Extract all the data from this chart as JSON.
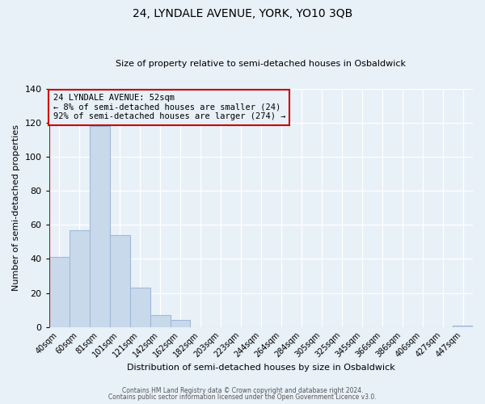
{
  "title": "24, LYNDALE AVENUE, YORK, YO10 3QB",
  "subtitle": "Size of property relative to semi-detached houses in Osbaldwick",
  "xlabel": "Distribution of semi-detached houses by size in Osbaldwick",
  "ylabel": "Number of semi-detached properties",
  "bin_labels": [
    "40sqm",
    "60sqm",
    "81sqm",
    "101sqm",
    "121sqm",
    "142sqm",
    "162sqm",
    "182sqm",
    "203sqm",
    "223sqm",
    "244sqm",
    "264sqm",
    "284sqm",
    "305sqm",
    "325sqm",
    "345sqm",
    "366sqm",
    "386sqm",
    "406sqm",
    "427sqm",
    "447sqm"
  ],
  "bar_heights": [
    41,
    57,
    118,
    54,
    23,
    7,
    4,
    0,
    0,
    0,
    0,
    0,
    0,
    0,
    0,
    0,
    0,
    0,
    0,
    0,
    1
  ],
  "bar_color": "#c9d9ec",
  "bar_edge_color": "#a0b8d8",
  "highlight_color": "#cc0000",
  "annotation_text": "24 LYNDALE AVENUE: 52sqm\n← 8% of semi-detached houses are smaller (24)\n92% of semi-detached houses are larger (274) →",
  "annotation_box_color": "#cc0000",
  "ylim": [
    0,
    140
  ],
  "yticks": [
    0,
    20,
    40,
    60,
    80,
    100,
    120,
    140
  ],
  "background_color": "#e8f0f8",
  "grid_color": "#ffffff",
  "title_fontsize": 10,
  "subtitle_fontsize": 8,
  "footer_line1": "Contains HM Land Registry data © Crown copyright and database right 2024.",
  "footer_line2": "Contains public sector information licensed under the Open Government Licence v3.0."
}
